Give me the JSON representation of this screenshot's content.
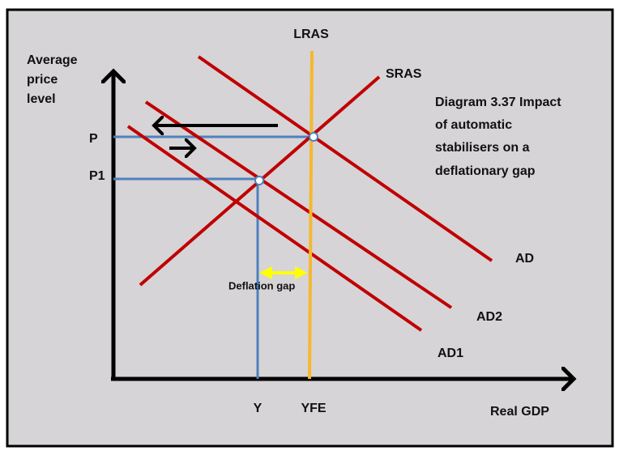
{
  "diagram": {
    "lras_label": "LRAS",
    "sras_label": "SRAS",
    "y_axis_label": [
      "Average",
      "price",
      "level"
    ],
    "price_labels": [
      "P",
      "P1"
    ],
    "caption": [
      "Diagram 3.37 Impact",
      "of automatic",
      "stabilisers on a",
      "deflationary gap"
    ],
    "ad_labels": [
      "AD",
      "AD2",
      "AD1"
    ],
    "gap_label": "Deflation gap",
    "output_labels": [
      "Y",
      "YFE"
    ],
    "x_axis_label": "Real GDP"
  }
}
